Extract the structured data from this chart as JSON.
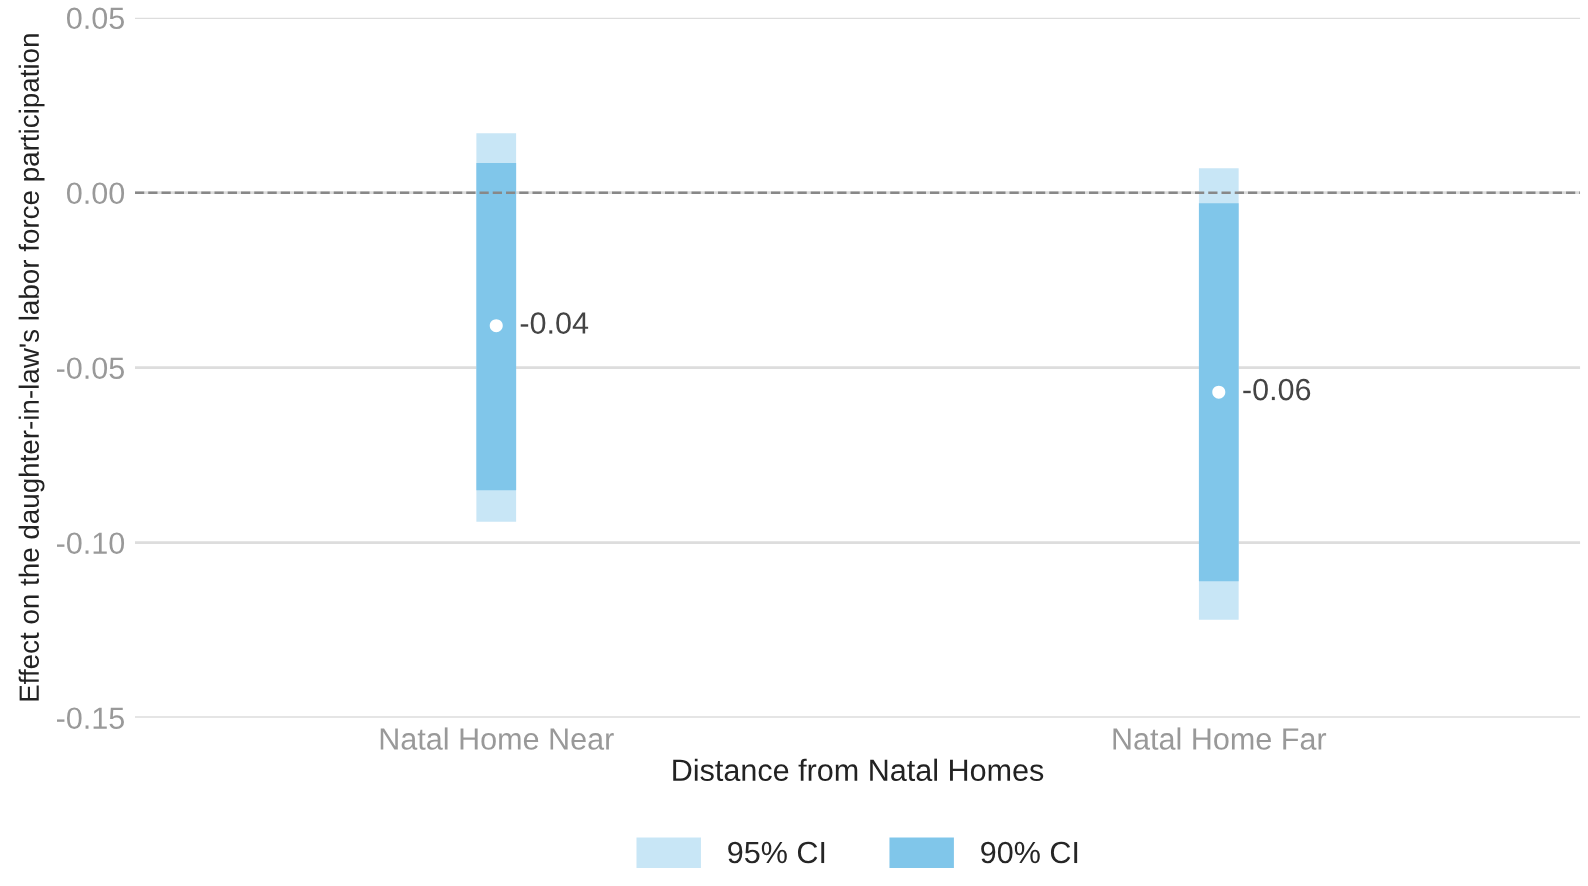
{
  "chart_data": {
    "type": "bar",
    "xlabel": "Distance from Natal Homes",
    "ylabel": "Effect on the daughter-in-law's labor force participation",
    "categories": [
      "Natal Home Near",
      "Natal Home Far"
    ],
    "series": [
      {
        "name": "95% CI",
        "color": "#c8e6f6",
        "base": [
          -0.094,
          -0.122
        ],
        "values": [
          0.111,
          0.129
        ]
      },
      {
        "name": "90% CI",
        "color": "#80c6ea",
        "base": [
          -0.085,
          -0.111
        ],
        "values": [
          0.0935,
          0.108
        ]
      },
      {
        "type": "scatter",
        "color": "#ffffff",
        "marker": "circle",
        "values": [
          -0.038,
          -0.057
        ],
        "value_labels": [
          "-0.04",
          "-0.06"
        ]
      }
    ],
    "ylim": [
      -0.15,
      0.05
    ],
    "yticks": [
      {
        "value": -0.15,
        "label": "-0.15"
      },
      {
        "value": -0.1,
        "label": "-0.10"
      },
      {
        "value": -0.05,
        "label": "-0.05"
      },
      {
        "value": 0,
        "label": "0.00"
      },
      {
        "value": 0.05,
        "label": "0.05"
      }
    ],
    "ref_lines": [
      {
        "axis": "y",
        "value": 0,
        "color": "#888888",
        "line_style": "dashed"
      }
    ],
    "grid": "y",
    "legend": "bottom"
  }
}
